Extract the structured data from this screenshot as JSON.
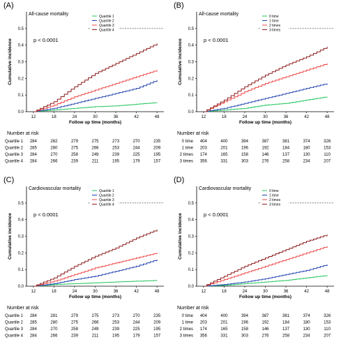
{
  "chart_data": [
    {
      "type": "line",
      "panel_label": "(A)",
      "title": "All-cause mortality",
      "p_value": "p < 0.0001",
      "xlabel": "Follow up time (months)",
      "ylabel": "Cumulative incidence",
      "xlim": [
        10,
        50
      ],
      "ylim": [
        0,
        0.6
      ],
      "x_ticks": [
        "12",
        "18",
        "24",
        "30",
        "36",
        "42",
        "48"
      ],
      "y_ticks": [
        "0.0",
        "0.1",
        "0.2",
        "0.3",
        "0.4",
        "0.5"
      ],
      "reference_line": 0.5,
      "legend": "top-right",
      "series": [
        {
          "name": "Quartile 1",
          "color": "#22c55e",
          "x": [
            12,
            18,
            24,
            30,
            36,
            42,
            48
          ],
          "y": [
            0.0,
            0.01,
            0.02,
            0.03,
            0.035,
            0.045,
            0.055
          ]
        },
        {
          "name": "Quartile 2",
          "color": "#1e40af",
          "x": [
            12,
            18,
            24,
            30,
            36,
            42,
            48
          ],
          "y": [
            0.0,
            0.02,
            0.05,
            0.08,
            0.11,
            0.14,
            0.19
          ]
        },
        {
          "name": "Quartile 3",
          "color": "#ef4444",
          "x": [
            12,
            18,
            24,
            30,
            36,
            42,
            48
          ],
          "y": [
            0.0,
            0.04,
            0.09,
            0.13,
            0.17,
            0.21,
            0.25
          ]
        },
        {
          "name": "Quartile 4",
          "color": "#8b1a1a",
          "x": [
            12,
            18,
            24,
            30,
            36,
            42,
            48
          ],
          "y": [
            0.0,
            0.06,
            0.15,
            0.23,
            0.29,
            0.35,
            0.41
          ]
        }
      ],
      "risk_table": {
        "title": "Number at risk",
        "rows": [
          {
            "label": "Quartile 1",
            "color": "#22c55e",
            "values": [
              "284",
              "282",
              "279",
              "275",
              "273",
              "270",
              "235"
            ]
          },
          {
            "label": "Quartile 2",
            "color": "#1e40af",
            "values": [
              "285",
              "280",
              "275",
              "266",
              "253",
              "244",
              "209"
            ]
          },
          {
            "label": "Quartile 3",
            "color": "#ef4444",
            "values": [
              "284",
              "270",
              "258",
              "249",
              "239",
              "225",
              "195"
            ]
          },
          {
            "label": "Quartile 4",
            "color": "#8b1a1a",
            "values": [
              "284",
              "266",
              "239",
              "211",
              "195",
              "179",
              "157"
            ]
          }
        ]
      }
    },
    {
      "type": "line",
      "panel_label": "(B)",
      "title": "All-cause mortality",
      "p_value": "p < 0.0001",
      "xlabel": "Follow up time (months)",
      "ylabel": "Cumulative incidence",
      "xlim": [
        10,
        50
      ],
      "ylim": [
        0,
        0.6
      ],
      "x_ticks": [
        "12",
        "18",
        "24",
        "30",
        "36",
        "42",
        "48"
      ],
      "y_ticks": [
        "0.0",
        "0.1",
        "0.2",
        "0.3",
        "0.4",
        "0.5"
      ],
      "reference_line": 0.5,
      "legend": "top-right",
      "series": [
        {
          "name": "0 time",
          "color": "#22c55e",
          "x": [
            12,
            18,
            24,
            30,
            36,
            42,
            48
          ],
          "y": [
            0.0,
            0.01,
            0.02,
            0.04,
            0.05,
            0.07,
            0.09
          ]
        },
        {
          "name": "1 time",
          "color": "#1e40af",
          "x": [
            12,
            18,
            24,
            30,
            36,
            42,
            48
          ],
          "y": [
            0.0,
            0.02,
            0.05,
            0.08,
            0.11,
            0.14,
            0.17
          ]
        },
        {
          "name": "2 times",
          "color": "#ef4444",
          "x": [
            12,
            18,
            24,
            30,
            36,
            42,
            48
          ],
          "y": [
            0.0,
            0.06,
            0.12,
            0.17,
            0.21,
            0.25,
            0.29
          ]
        },
        {
          "name": "3 times",
          "color": "#8b1a1a",
          "x": [
            12,
            18,
            24,
            30,
            36,
            42,
            48
          ],
          "y": [
            0.0,
            0.07,
            0.15,
            0.22,
            0.28,
            0.33,
            0.39
          ]
        }
      ],
      "risk_table": {
        "title": "Number at risk",
        "rows": [
          {
            "label": "0 time",
            "color": "#22c55e",
            "values": [
              "404",
              "400",
              "394",
              "387",
              "381",
              "374",
              "326"
            ]
          },
          {
            "label": "1 time",
            "color": "#1e40af",
            "values": [
              "203",
              "201",
              "196",
              "192",
              "184",
              "180",
              "153"
            ]
          },
          {
            "label": "2 times",
            "color": "#ef4444",
            "values": [
              "174",
              "165",
              "158",
              "146",
              "137",
              "130",
              "110"
            ]
          },
          {
            "label": "3 times",
            "color": "#8b1a1a",
            "values": [
              "356",
              "331",
              "303",
              "276",
              "258",
              "234",
              "207"
            ]
          }
        ]
      }
    },
    {
      "type": "line",
      "panel_label": "(C)",
      "title": "Cardiovascular mortality",
      "p_value": "p < 0.0001",
      "xlabel": "Follow up time (months)",
      "ylabel": "Cumulative incidence",
      "xlim": [
        10,
        50
      ],
      "ylim": [
        0,
        0.6
      ],
      "x_ticks": [
        "12",
        "18",
        "24",
        "30",
        "36",
        "42",
        "48"
      ],
      "y_ticks": [
        "0.0",
        "0.1",
        "0.2",
        "0.3",
        "0.4",
        "0.5"
      ],
      "reference_line": 0.5,
      "legend": "top-right",
      "series": [
        {
          "name": "Quartile 1",
          "color": "#22c55e",
          "x": [
            12,
            18,
            24,
            30,
            36,
            42,
            48
          ],
          "y": [
            0.0,
            0.01,
            0.015,
            0.02,
            0.025,
            0.03,
            0.035
          ]
        },
        {
          "name": "Quartile 2",
          "color": "#1e40af",
          "x": [
            12,
            18,
            24,
            30,
            36,
            42,
            48
          ],
          "y": [
            0.0,
            0.015,
            0.04,
            0.06,
            0.09,
            0.12,
            0.16
          ]
        },
        {
          "name": "Quartile 3",
          "color": "#ef4444",
          "x": [
            12,
            18,
            24,
            30,
            36,
            42,
            48
          ],
          "y": [
            0.0,
            0.03,
            0.07,
            0.11,
            0.14,
            0.17,
            0.2
          ]
        },
        {
          "name": "Quartile 4",
          "color": "#8b1a1a",
          "x": [
            12,
            18,
            24,
            30,
            36,
            42,
            48
          ],
          "y": [
            0.0,
            0.05,
            0.12,
            0.18,
            0.23,
            0.29,
            0.34
          ]
        }
      ],
      "risk_table": {
        "title": "Number at risk",
        "rows": [
          {
            "label": "Quartile 1",
            "color": "#22c55e",
            "values": [
              "284",
              "281",
              "279",
              "275",
              "273",
              "270",
              "235"
            ]
          },
          {
            "label": "Quartile 2",
            "color": "#1e40af",
            "values": [
              "285",
              "280",
              "275",
              "266",
              "253",
              "244",
              "209"
            ]
          },
          {
            "label": "Quartile 3",
            "color": "#ef4444",
            "values": [
              "284",
              "270",
              "258",
              "249",
              "239",
              "225",
              "195"
            ]
          },
          {
            "label": "Quartile 4",
            "color": "#8b1a1a",
            "values": [
              "284",
              "266",
              "239",
              "211",
              "195",
              "179",
              "157"
            ]
          }
        ]
      }
    },
    {
      "type": "line",
      "panel_label": "(D)",
      "title": "Cardiovascular mortality",
      "p_value": "p < 0.0001",
      "xlabel": "Follow up time (months)",
      "ylabel": "Cumulative incidence",
      "xlim": [
        10,
        50
      ],
      "ylim": [
        0,
        0.6
      ],
      "x_ticks": [
        "12",
        "18",
        "24",
        "30",
        "36",
        "42",
        "48"
      ],
      "y_ticks": [
        "0.0",
        "0.1",
        "0.2",
        "0.3",
        "0.4",
        "0.5"
      ],
      "reference_line": 0.5,
      "legend": "top-right",
      "series": [
        {
          "name": "0 time",
          "color": "#22c55e",
          "x": [
            12,
            18,
            24,
            30,
            36,
            42,
            48
          ],
          "y": [
            0.0,
            0.005,
            0.015,
            0.025,
            0.035,
            0.05,
            0.065
          ]
        },
        {
          "name": "1 time",
          "color": "#1e40af",
          "x": [
            12,
            18,
            24,
            30,
            36,
            42,
            48
          ],
          "y": [
            0.0,
            0.01,
            0.025,
            0.045,
            0.07,
            0.095,
            0.13
          ]
        },
        {
          "name": "2 times",
          "color": "#ef4444",
          "x": [
            12,
            18,
            24,
            30,
            36,
            42,
            48
          ],
          "y": [
            0.0,
            0.04,
            0.08,
            0.12,
            0.16,
            0.2,
            0.24
          ]
        },
        {
          "name": "3 times",
          "color": "#8b1a1a",
          "x": [
            12,
            18,
            24,
            30,
            36,
            42,
            48
          ],
          "y": [
            0.0,
            0.06,
            0.12,
            0.17,
            0.22,
            0.27,
            0.31
          ]
        }
      ],
      "risk_table": {
        "title": "Number at risk",
        "rows": [
          {
            "label": "0 time",
            "color": "#22c55e",
            "values": [
              "404",
              "400",
              "394",
              "387",
              "381",
              "374",
              "326"
            ]
          },
          {
            "label": "1 time",
            "color": "#1e40af",
            "values": [
              "203",
              "201",
              "196",
              "192",
              "184",
              "180",
              "153"
            ]
          },
          {
            "label": "2 times",
            "color": "#ef4444",
            "values": [
              "174",
              "165",
              "158",
              "146",
              "137",
              "130",
              "110"
            ]
          },
          {
            "label": "3 times",
            "color": "#8b1a1a",
            "values": [
              "356",
              "331",
              "303",
              "276",
              "258",
              "234",
              "207"
            ]
          }
        ]
      }
    }
  ]
}
